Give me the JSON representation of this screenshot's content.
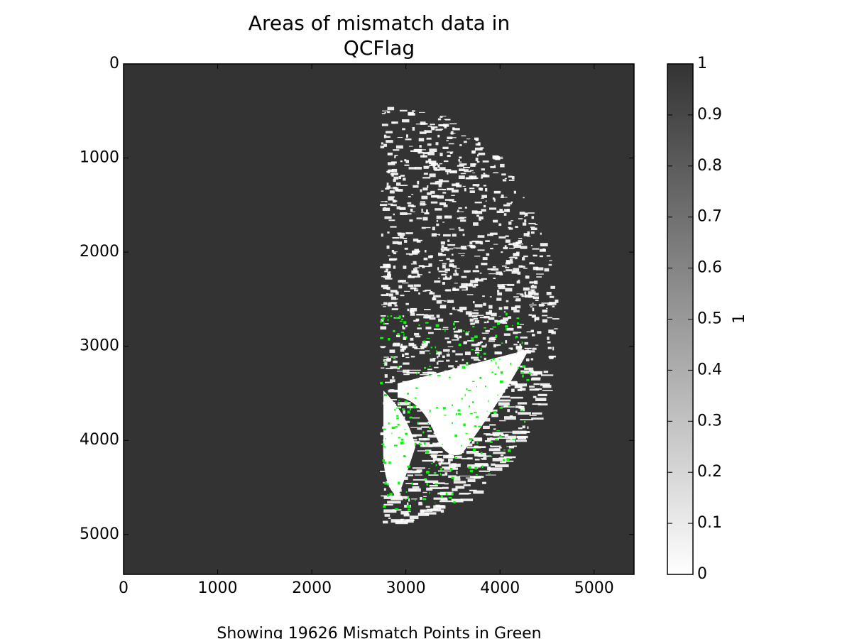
{
  "chart_data": {
    "type": "image",
    "title": [
      "Areas of mismatch data in",
      "QCFlag"
    ],
    "x_label": "Showing 19626 Mismatch Points in Green",
    "xlim": [
      0,
      5424
    ],
    "ylim": [
      5424,
      0
    ],
    "xticks": [
      0,
      1000,
      2000,
      3000,
      4000,
      5000
    ],
    "yticks": [
      0,
      1000,
      2000,
      3000,
      4000,
      5000
    ],
    "colormap": [
      "#ffffff",
      "#333333"
    ],
    "highlight_color": "#00ff00",
    "colorbar": {
      "label": "1",
      "clim": [
        0,
        1
      ],
      "ticks": [
        0,
        0.1,
        0.2,
        0.3,
        0.4,
        0.5,
        0.6,
        0.7,
        0.8,
        0.9,
        1
      ]
    }
  }
}
